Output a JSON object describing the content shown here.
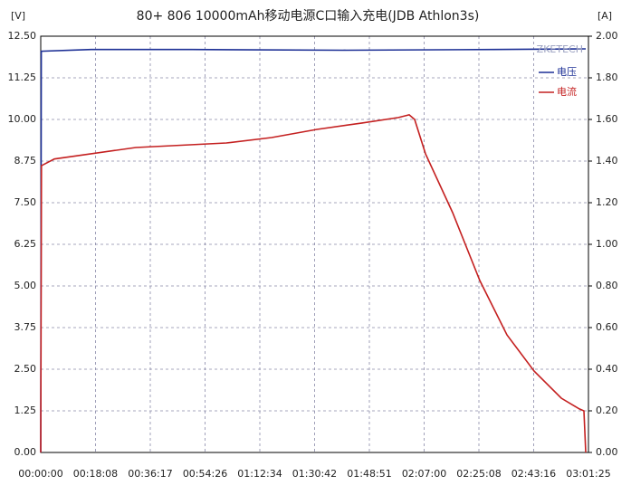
{
  "chart_data": {
    "type": "line",
    "title": "80+ 806 10000mAh移动电源C口输入充电(JDB Athlon3s)",
    "y_label": "[V]",
    "y2_label": "[A]",
    "annotation": "ZKETECH",
    "xlim": [
      0,
      10885
    ],
    "xticks": [
      {
        "value": 0,
        "label": "00:00:00"
      },
      {
        "value": 1088,
        "label": "00:18:08"
      },
      {
        "value": 2177,
        "label": "00:36:17"
      },
      {
        "value": 3266,
        "label": "00:54:26"
      },
      {
        "value": 4354,
        "label": "01:12:34"
      },
      {
        "value": 5442,
        "label": "01:30:42"
      },
      {
        "value": 6531,
        "label": "01:48:51"
      },
      {
        "value": 7620,
        "label": "02:07:00"
      },
      {
        "value": 8708,
        "label": "02:25:08"
      },
      {
        "value": 9796,
        "label": "02:43:16"
      },
      {
        "value": 10885,
        "label": "03:01:25"
      }
    ],
    "ylim": [
      0,
      12.5
    ],
    "yticks": [
      {
        "value": 0,
        "label": "0.00"
      },
      1.25,
      {
        "value": 2.5,
        "label": "2.50"
      },
      3.75,
      {
        "value": 5,
        "label": "5.00"
      },
      6.25,
      {
        "value": 7.5,
        "label": "7.50"
      },
      8.75,
      {
        "value": 10,
        "label": "10.00"
      },
      11.25,
      {
        "value": 12.5,
        "label": "12.50"
      }
    ],
    "y2lim": [
      0,
      2
    ],
    "y2ticks": [
      {
        "value": 0,
        "label": "0.00"
      },
      {
        "value": 0.2,
        "label": "0.20"
      },
      {
        "value": 0.4,
        "label": "0.40"
      },
      {
        "value": 0.6,
        "label": "0.60"
      },
      {
        "value": 0.8,
        "label": "0.80"
      },
      {
        "value": 1,
        "label": "1.00"
      },
      {
        "value": 1.2,
        "label": "1.20"
      },
      {
        "value": 1.4,
        "label": "1.40"
      },
      {
        "value": 1.6,
        "label": "1.60"
      },
      {
        "value": 1.8,
        "label": "1.80"
      },
      {
        "value": 2,
        "label": "2.00"
      }
    ],
    "grid": true,
    "legend": "top-right",
    "series": [
      {
        "name": "电压",
        "color": "#1c2f95",
        "axis": "y",
        "x": [
          0,
          10,
          1000,
          3000,
          6000,
          9000,
          10831
        ],
        "values": [
          0,
          12.05,
          12.1,
          12.1,
          12.08,
          12.1,
          12.12
        ]
      },
      {
        "name": "电流",
        "color": "#c42020",
        "axis": "y2",
        "x": [
          0,
          15,
          270,
          1889,
          3688,
          4588,
          5487,
          6387,
          7107,
          7323,
          7431,
          7647,
          8186,
          8726,
          9266,
          9806,
          10345,
          10705,
          10795,
          10831
        ],
        "values": [
          0,
          1.378,
          1.41,
          1.465,
          1.487,
          1.513,
          1.552,
          1.583,
          1.609,
          1.622,
          1.6,
          1.435,
          1.152,
          0.826,
          0.565,
          0.391,
          0.261,
          0.209,
          0.2,
          0
        ]
      }
    ]
  }
}
